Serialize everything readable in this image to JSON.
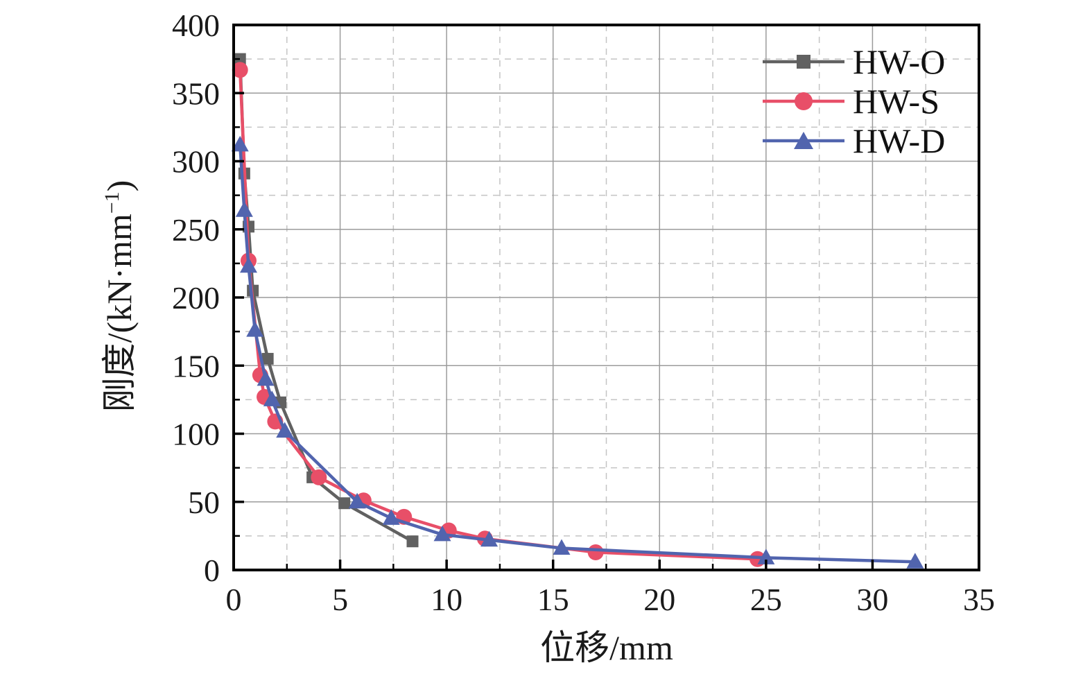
{
  "chart_data": {
    "type": "line",
    "xlabel": "位移/mm",
    "ylabel": "刚度/(kN·mm⁻¹)",
    "ylabel_parts": {
      "prefix": "刚度/(kN·mm",
      "superscript": "−1",
      "suffix": ")"
    },
    "xlim": [
      0,
      35
    ],
    "ylim": [
      0,
      400
    ],
    "x_ticks": [
      "0",
      "5",
      "10",
      "15",
      "20",
      "25",
      "30",
      "35"
    ],
    "y_ticks": [
      "0",
      "50",
      "100",
      "150",
      "200",
      "250",
      "300",
      "350",
      "400"
    ],
    "x_minor_step": 2.5,
    "y_minor_step": 25,
    "grid": {
      "major_style": "solid",
      "minor_style": "dashed",
      "major_color": "#9b9b9b",
      "minor_color": "#c4c4c4"
    },
    "axis_color": "#000000",
    "text_color": "#1a1a1a",
    "legend": {
      "position": "top-right",
      "entries": [
        "HW-O",
        "HW-S",
        "HW-D"
      ]
    },
    "series": [
      {
        "name": "HW-O",
        "marker": "square",
        "color": "#616161",
        "points": [
          [
            0.3,
            375
          ],
          [
            0.5,
            291
          ],
          [
            0.7,
            252
          ],
          [
            0.9,
            205
          ],
          [
            1.6,
            155
          ],
          [
            2.2,
            123
          ],
          [
            3.7,
            68
          ],
          [
            5.2,
            49
          ],
          [
            8.4,
            21
          ]
        ]
      },
      {
        "name": "HW-S",
        "marker": "circle",
        "color": "#e84f68",
        "points": [
          [
            0.3,
            367
          ],
          [
            0.7,
            227
          ],
          [
            1.25,
            143
          ],
          [
            1.45,
            127
          ],
          [
            1.95,
            109
          ],
          [
            4.0,
            68
          ],
          [
            6.1,
            51
          ],
          [
            8.0,
            39
          ],
          [
            10.1,
            29
          ],
          [
            11.8,
            23
          ],
          [
            17.0,
            13
          ],
          [
            24.6,
            8
          ]
        ]
      },
      {
        "name": "HW-D",
        "marker": "triangle",
        "color": "#5164ae",
        "points": [
          [
            0.3,
            312
          ],
          [
            0.5,
            264
          ],
          [
            0.7,
            223
          ],
          [
            1.0,
            176
          ],
          [
            1.5,
            140
          ],
          [
            1.8,
            125
          ],
          [
            2.4,
            102
          ],
          [
            5.8,
            50
          ],
          [
            7.4,
            38
          ],
          [
            9.8,
            26
          ],
          [
            12.0,
            22
          ],
          [
            15.4,
            16
          ],
          [
            25.0,
            9
          ],
          [
            32.0,
            6
          ]
        ]
      }
    ]
  }
}
